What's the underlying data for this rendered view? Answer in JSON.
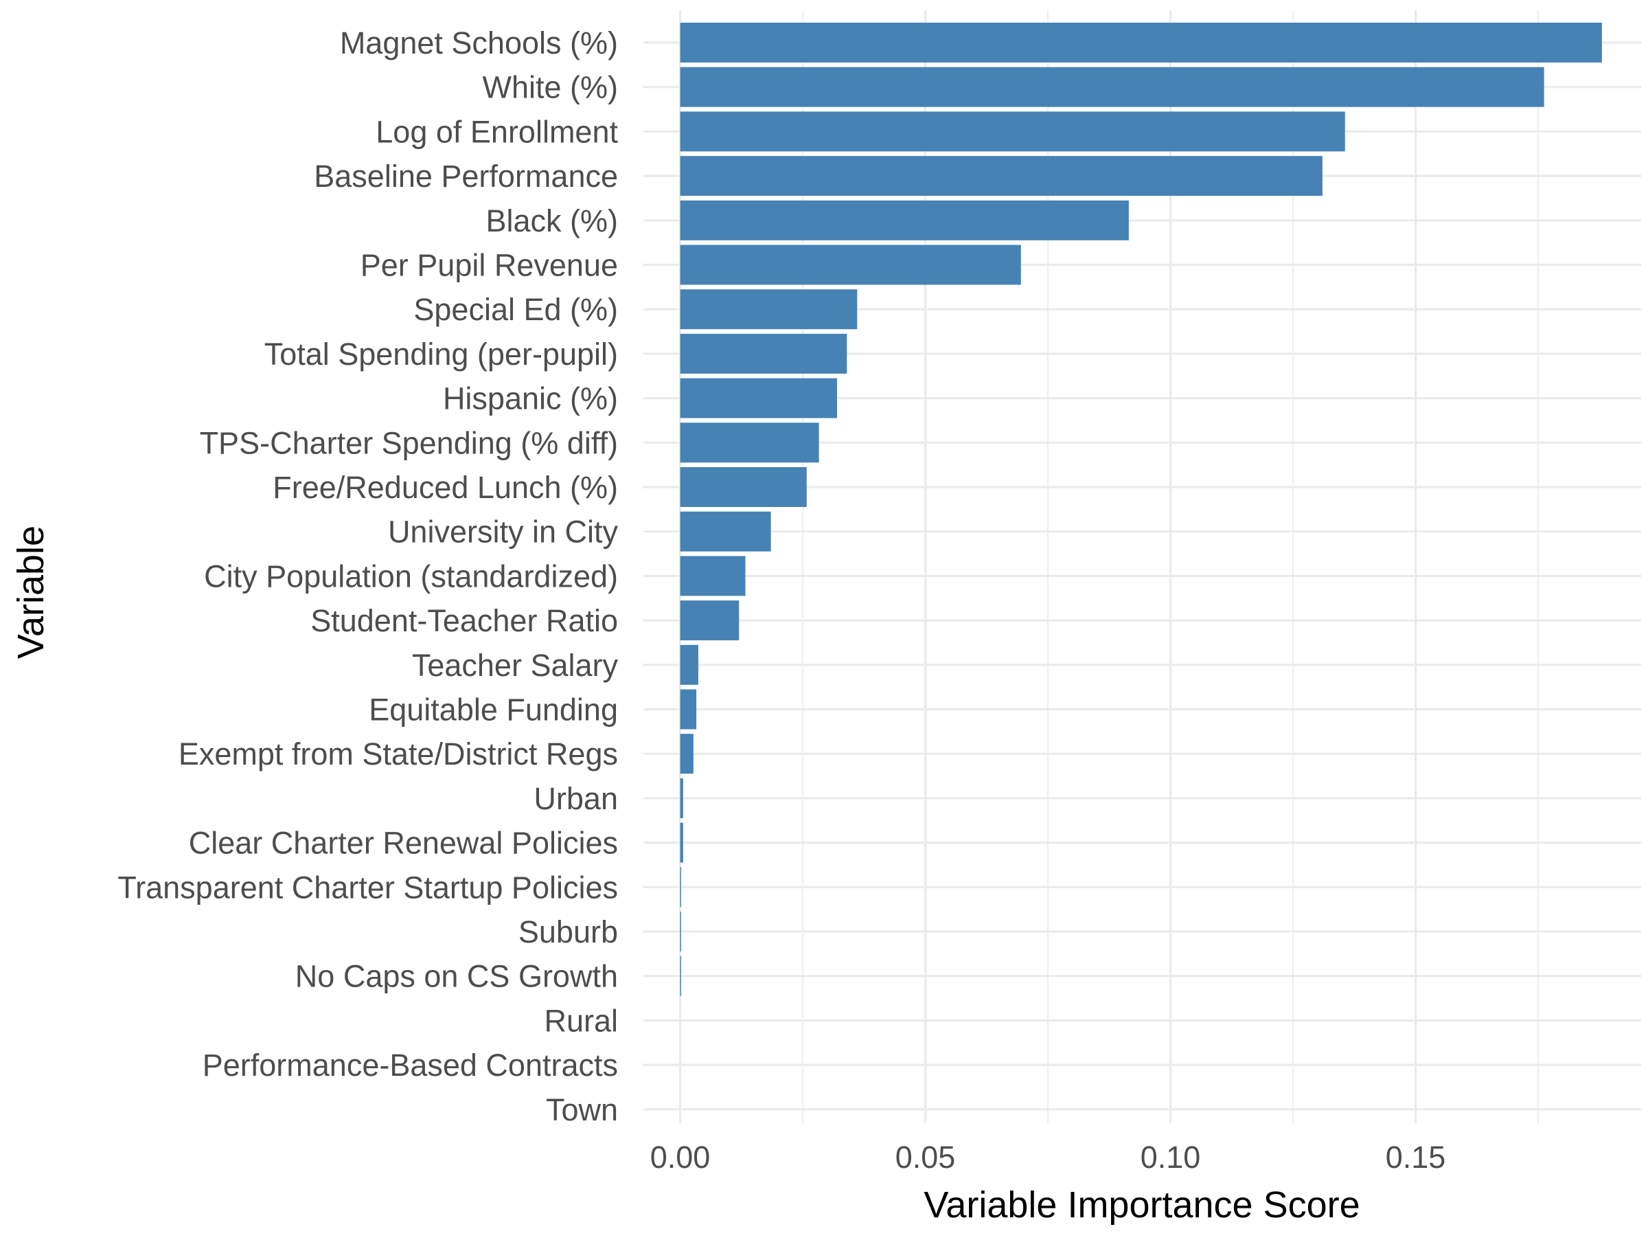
{
  "chart_data": {
    "type": "bar",
    "orientation": "horizontal",
    "title": "",
    "xlabel": "Variable Importance Score",
    "ylabel": "Variable",
    "xlim": [
      -0.0075,
      0.196
    ],
    "x_ticks": [
      0.0,
      0.05,
      0.1,
      0.15
    ],
    "x_tick_labels": [
      "0.00",
      "0.05",
      "0.10",
      "0.15"
    ],
    "bar_color": "#4682b4",
    "grid": true,
    "legend": "none",
    "categories": [
      "Magnet Schools (%)",
      "White (%)",
      "Log of Enrollment",
      "Baseline Performance",
      "Black (%)",
      "Per Pupil Revenue",
      "Special Ed (%)",
      "Total Spending (per-pupil)",
      "Hispanic (%)",
      "TPS-Charter Spending (% diff)",
      "Free/Reduced Lunch (%)",
      "University in City",
      "City Population (standardized)",
      "Student-Teacher Ratio",
      "Teacher Salary",
      "Equitable Funding",
      "Exempt from State/District Regs",
      "Urban",
      "Clear Charter Renewal Policies",
      "Transparent Charter Startup Policies",
      "Suburb",
      "No Caps on CS Growth",
      "Rural",
      "Performance-Based Contracts",
      "Town"
    ],
    "values": [
      0.188,
      0.1762,
      0.1356,
      0.131,
      0.0915,
      0.0695,
      0.0361,
      0.034,
      0.032,
      0.0283,
      0.0258,
      0.0185,
      0.0133,
      0.012,
      0.0037,
      0.0033,
      0.0027,
      0.0006,
      0.0006,
      0.0002,
      0.0002,
      0.0002,
      0.0,
      0.0,
      0.0
    ]
  }
}
